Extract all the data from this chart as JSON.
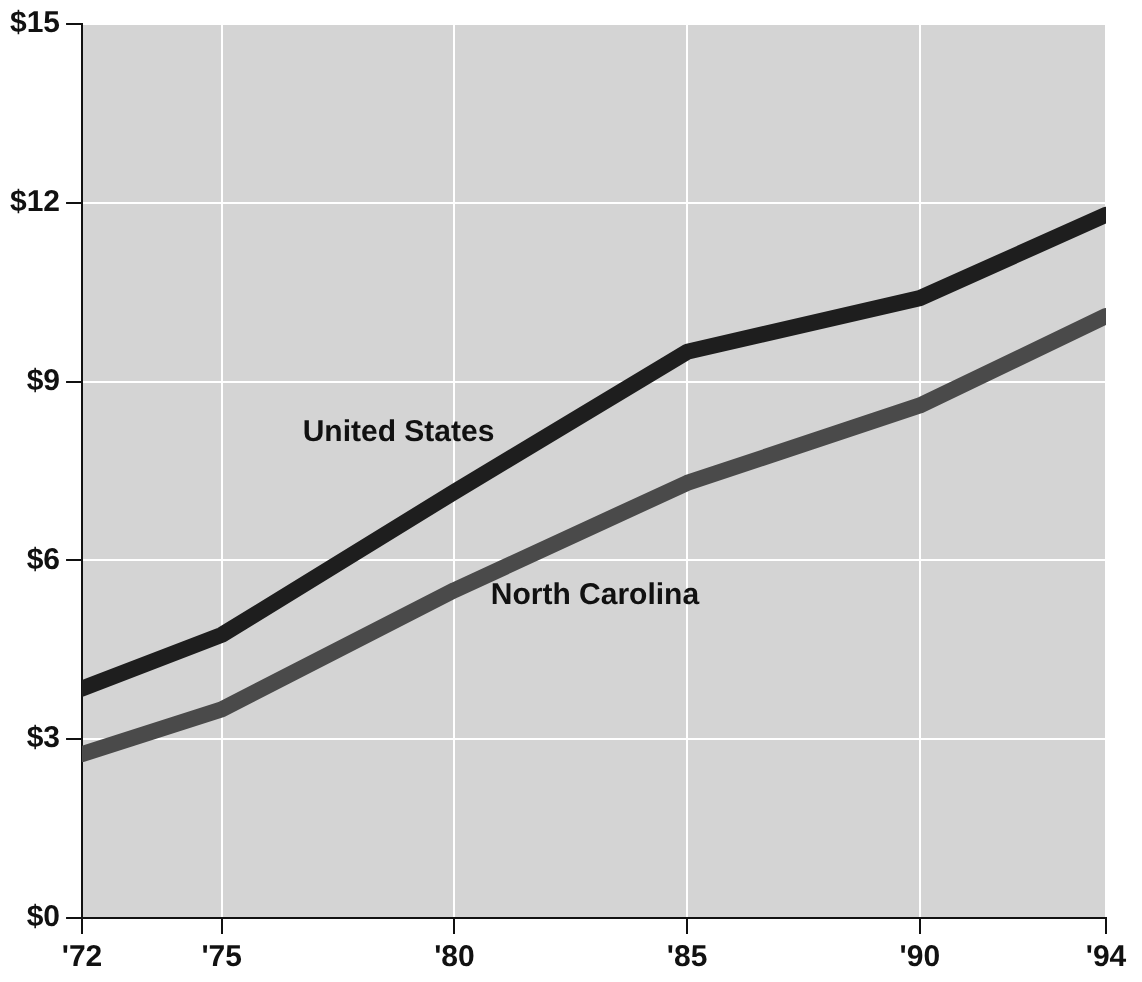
{
  "chart_data": {
    "type": "line",
    "x": [
      1972,
      1975,
      1980,
      1985,
      1990,
      1994
    ],
    "series": [
      {
        "name": "United States",
        "color": "#1e1e1e",
        "values": [
          3.85,
          4.75,
          7.15,
          9.5,
          10.4,
          11.8
        ]
      },
      {
        "name": "North Carolina",
        "color": "#4a4a4a",
        "values": [
          2.75,
          3.5,
          5.5,
          7.3,
          8.6,
          10.1
        ]
      }
    ],
    "xlim": [
      1972,
      1994
    ],
    "xticks": [
      {
        "value": 1972,
        "label": "'72"
      },
      {
        "value": 1975,
        "label": "'75"
      },
      {
        "value": 1980,
        "label": "'80"
      },
      {
        "value": 1985,
        "label": "'85"
      },
      {
        "value": 1990,
        "label": "'90"
      },
      {
        "value": 1994,
        "label": "'94"
      }
    ],
    "ylim": [
      0,
      15
    ],
    "yticks": [
      {
        "value": 0,
        "label": "$0"
      },
      {
        "value": 3,
        "label": "$3"
      },
      {
        "value": 6,
        "label": "$6"
      },
      {
        "value": 9,
        "label": "$9"
      },
      {
        "value": 12,
        "label": "$12"
      },
      {
        "value": 15,
        "label": "$15"
      }
    ],
    "grid": true,
    "legend": false,
    "marker": "none",
    "line_style": "solid"
  }
}
